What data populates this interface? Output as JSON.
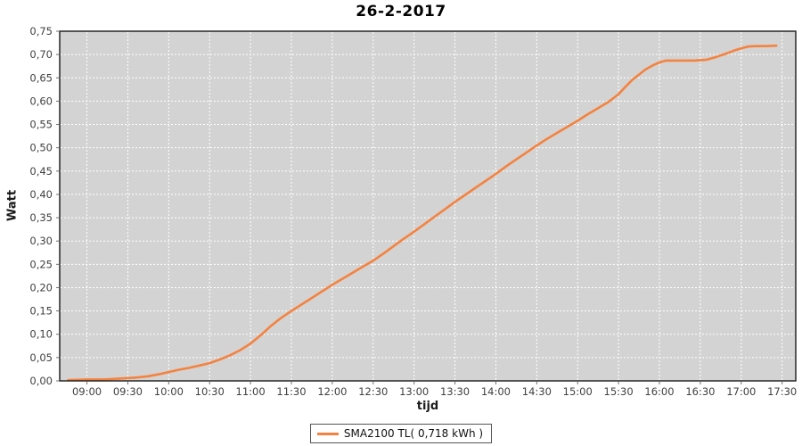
{
  "title": {
    "text": "26-2-2017"
  },
  "axes": {
    "x_label": "tijd",
    "y_label": "Watt"
  },
  "legend": {
    "label": "SMA2100 TL( 0,718 kWh )"
  },
  "colors": {
    "line": "#F5823F",
    "plot_bg": "#D3D3D3",
    "grid": "#FFFFFF",
    "outer_bg": "#FFFFFF",
    "plot_border": "#1a1a1a",
    "tick": "#707070",
    "tick_label": "#404040"
  },
  "chart_data": {
    "type": "line",
    "title": "26-2-2017",
    "xlabel": "tijd",
    "ylabel": "Watt",
    "legend_position": "bottom",
    "grid": "on, white dashed, every 30 min and every 0.05 W",
    "xlim_hours": [
      8.667,
      17.667
    ],
    "ylim": [
      0,
      0.75
    ],
    "x_ticks": [
      {
        "hour": 9.0,
        "label": "09:00"
      },
      {
        "hour": 9.5,
        "label": "09:30"
      },
      {
        "hour": 10.0,
        "label": "10:00"
      },
      {
        "hour": 10.5,
        "label": "10:30"
      },
      {
        "hour": 11.0,
        "label": "11:00"
      },
      {
        "hour": 11.5,
        "label": "11:30"
      },
      {
        "hour": 12.0,
        "label": "12:00"
      },
      {
        "hour": 12.5,
        "label": "12:30"
      },
      {
        "hour": 13.0,
        "label": "13:00"
      },
      {
        "hour": 13.5,
        "label": "13:30"
      },
      {
        "hour": 14.0,
        "label": "14:00"
      },
      {
        "hour": 14.5,
        "label": "14:30"
      },
      {
        "hour": 15.0,
        "label": "15:00"
      },
      {
        "hour": 15.5,
        "label": "15:30"
      },
      {
        "hour": 16.0,
        "label": "16:00"
      },
      {
        "hour": 16.5,
        "label": "16:30"
      },
      {
        "hour": 17.0,
        "label": "17:00"
      },
      {
        "hour": 17.5,
        "label": "17:30"
      }
    ],
    "y_ticks": [
      {
        "value": 0.0,
        "label": "0,00"
      },
      {
        "value": 0.05,
        "label": "0,05"
      },
      {
        "value": 0.1,
        "label": "0,10"
      },
      {
        "value": 0.15,
        "label": "0,15"
      },
      {
        "value": 0.2,
        "label": "0,20"
      },
      {
        "value": 0.25,
        "label": "0,25"
      },
      {
        "value": 0.3,
        "label": "0,30"
      },
      {
        "value": 0.35,
        "label": "0,35"
      },
      {
        "value": 0.4,
        "label": "0,40"
      },
      {
        "value": 0.45,
        "label": "0,45"
      },
      {
        "value": 0.5,
        "label": "0,50"
      },
      {
        "value": 0.55,
        "label": "0,55"
      },
      {
        "value": 0.6,
        "label": "0,60"
      },
      {
        "value": 0.65,
        "label": "0,65"
      },
      {
        "value": 0.7,
        "label": "0,70"
      },
      {
        "value": 0.75,
        "label": "0,75"
      }
    ],
    "series": [
      {
        "name": "SMA2100 TL( 0,718 kWh )",
        "color": "#F5823F",
        "total_kwh_label": "0,718 kWh",
        "points": [
          [
            8.77,
            0.002
          ],
          [
            9.0,
            0.003
          ],
          [
            9.2,
            0.003
          ],
          [
            9.4,
            0.005
          ],
          [
            9.6,
            0.007
          ],
          [
            9.75,
            0.01
          ],
          [
            9.9,
            0.015
          ],
          [
            10.0,
            0.019
          ],
          [
            10.125,
            0.024
          ],
          [
            10.25,
            0.028
          ],
          [
            10.375,
            0.033
          ],
          [
            10.5,
            0.038
          ],
          [
            10.625,
            0.046
          ],
          [
            10.75,
            0.055
          ],
          [
            10.875,
            0.066
          ],
          [
            11.0,
            0.08
          ],
          [
            11.125,
            0.098
          ],
          [
            11.25,
            0.118
          ],
          [
            11.375,
            0.135
          ],
          [
            11.5,
            0.15
          ],
          [
            11.625,
            0.164
          ],
          [
            11.75,
            0.178
          ],
          [
            11.875,
            0.192
          ],
          [
            12.0,
            0.206
          ],
          [
            12.125,
            0.219
          ],
          [
            12.25,
            0.232
          ],
          [
            12.375,
            0.245
          ],
          [
            12.5,
            0.258
          ],
          [
            12.625,
            0.273
          ],
          [
            12.75,
            0.289
          ],
          [
            12.875,
            0.305
          ],
          [
            13.0,
            0.32
          ],
          [
            13.125,
            0.336
          ],
          [
            13.25,
            0.352
          ],
          [
            13.375,
            0.368
          ],
          [
            13.5,
            0.384
          ],
          [
            13.625,
            0.399
          ],
          [
            13.75,
            0.414
          ],
          [
            13.875,
            0.429
          ],
          [
            14.0,
            0.444
          ],
          [
            14.125,
            0.46
          ],
          [
            14.25,
            0.475
          ],
          [
            14.375,
            0.49
          ],
          [
            14.5,
            0.505
          ],
          [
            14.625,
            0.519
          ],
          [
            14.75,
            0.532
          ],
          [
            14.875,
            0.545
          ],
          [
            15.0,
            0.558
          ],
          [
            15.125,
            0.572
          ],
          [
            15.25,
            0.585
          ],
          [
            15.375,
            0.598
          ],
          [
            15.5,
            0.615
          ],
          [
            15.58,
            0.63
          ],
          [
            15.67,
            0.646
          ],
          [
            15.75,
            0.657
          ],
          [
            15.83,
            0.668
          ],
          [
            15.92,
            0.677
          ],
          [
            16.0,
            0.683
          ],
          [
            16.08,
            0.687
          ],
          [
            16.25,
            0.687
          ],
          [
            16.42,
            0.687
          ],
          [
            16.58,
            0.689
          ],
          [
            16.7,
            0.695
          ],
          [
            16.83,
            0.703
          ],
          [
            16.92,
            0.709
          ],
          [
            17.0,
            0.713
          ],
          [
            17.08,
            0.717
          ],
          [
            17.17,
            0.718
          ],
          [
            17.3,
            0.718
          ],
          [
            17.43,
            0.719
          ]
        ]
      }
    ]
  }
}
